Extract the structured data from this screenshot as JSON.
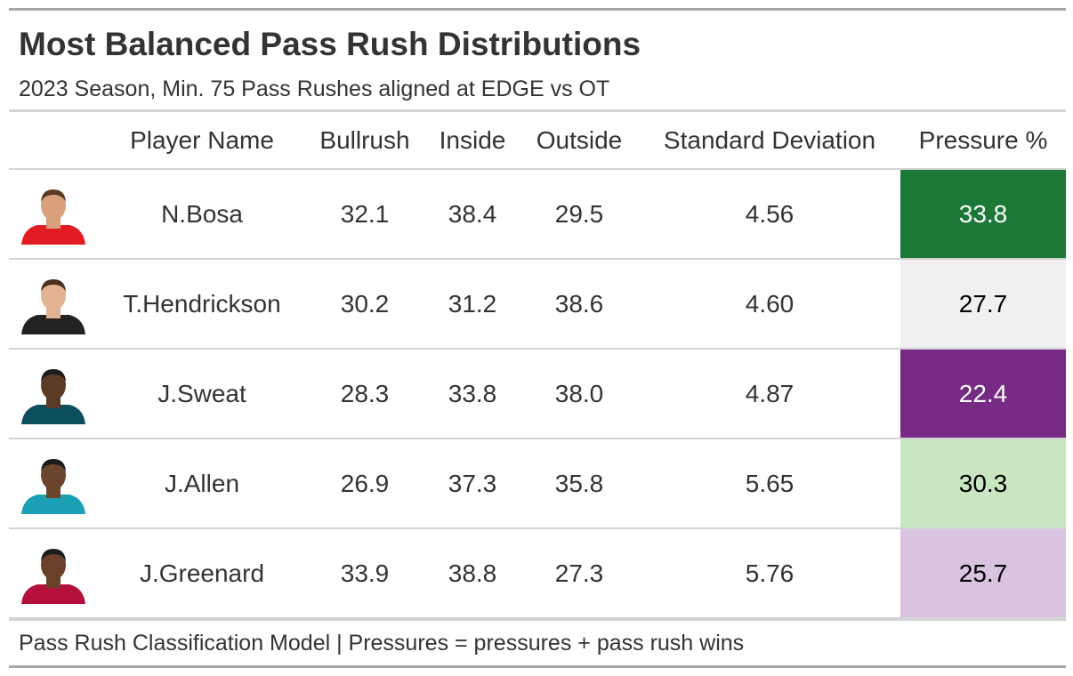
{
  "title": "Most Balanced Pass Rush Distributions",
  "subtitle": "2023 Season, Min. 75 Pass Rushes aligned at EDGE vs OT",
  "source": "Pass Rush Classification Model | Pressures = pressures + pass rush wins",
  "chart_data": {
    "type": "table",
    "columns": [
      "",
      "Player Name",
      "Bullrush",
      "Inside",
      "Outside",
      "Standard Deviation",
      "Pressure %"
    ],
    "rows": [
      {
        "player": "N.Bosa",
        "bullrush": "32.1",
        "inside": "38.4",
        "outside": "29.5",
        "std_dev": "4.56",
        "pressure": "33.8",
        "pressure_bg": "#1b7837",
        "pressure_fg": "#ffffff",
        "headshot": {
          "icon": "player-headshot-icon",
          "jersey": "#e31b23",
          "skin": "#d9a07e",
          "hair": "#5a3a22"
        }
      },
      {
        "player": "T.Hendrickson",
        "bullrush": "30.2",
        "inside": "31.2",
        "outside": "38.6",
        "std_dev": "4.60",
        "pressure": "27.7",
        "pressure_bg": "#f1eff1",
        "pressure_fg": "#000000",
        "headshot": {
          "icon": "player-headshot-icon",
          "jersey": "#222222",
          "skin": "#e2b393",
          "hair": "#4a3020"
        }
      },
      {
        "player": "J.Sweat",
        "bullrush": "28.3",
        "inside": "33.8",
        "outside": "38.0",
        "std_dev": "4.87",
        "pressure": "22.4",
        "pressure_bg": "#762a83",
        "pressure_fg": "#ffffff",
        "headshot": {
          "icon": "player-headshot-icon",
          "jersey": "#0b4f5c",
          "skin": "#5b3a26",
          "hair": "#1c1c1c"
        }
      },
      {
        "player": "J.Allen",
        "bullrush": "26.9",
        "inside": "37.3",
        "outside": "35.8",
        "std_dev": "5.65",
        "pressure": "30.3",
        "pressure_bg": "#c7e6c1",
        "pressure_fg": "#000000",
        "headshot": {
          "icon": "player-headshot-icon",
          "jersey": "#1a9fb4",
          "skin": "#6b452c",
          "hair": "#1c1c1c"
        }
      },
      {
        "player": "J.Greenard",
        "bullrush": "33.9",
        "inside": "38.8",
        "outside": "27.3",
        "std_dev": "5.76",
        "pressure": "25.7",
        "pressure_bg": "#d9c3e1",
        "pressure_fg": "#000000",
        "headshot": {
          "icon": "player-headshot-icon",
          "jersey": "#b5103c",
          "skin": "#6a4029",
          "hair": "#1c1c1c"
        }
      }
    ]
  }
}
